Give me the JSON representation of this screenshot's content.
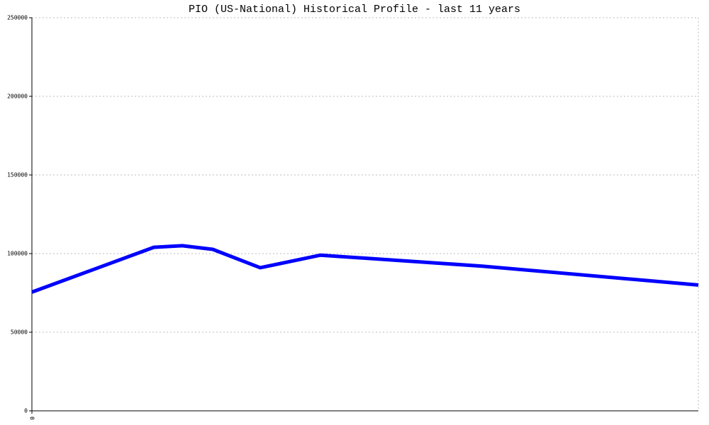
{
  "chart_data": {
    "type": "line",
    "title": "PIO (US-National) Historical Profile - last 11 years",
    "x": [
      0,
      172,
      212,
      255,
      322,
      407,
      635,
      940
    ],
    "series": [
      {
        "name": "PIO",
        "color": "#0000ff",
        "values": [
          75500,
          104000,
          105000,
          102700,
          91000,
          99000,
          92000,
          80000
        ]
      }
    ],
    "xlim": [
      0,
      940
    ],
    "xticks": [
      0
    ],
    "ylim": [
      0,
      250000
    ],
    "yticks": [
      0,
      50000,
      100000,
      150000,
      200000,
      250000
    ],
    "grid": true
  }
}
